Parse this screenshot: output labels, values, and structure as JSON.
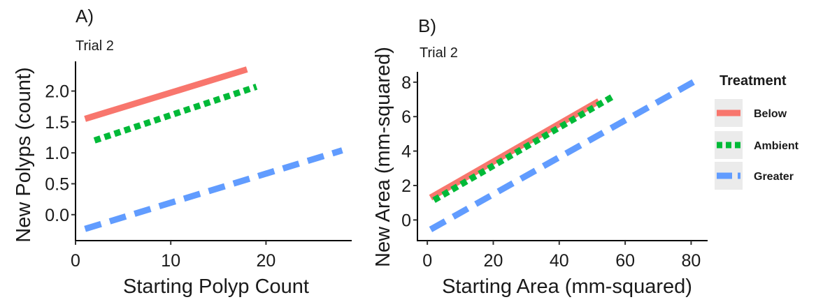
{
  "chart_data": [
    {
      "type": "line",
      "panel_label": "A)",
      "subtitle": "Trial 2",
      "xlabel": "Starting Polyp Count",
      "ylabel": "New Polyps (count)",
      "xlim": [
        0,
        29
      ],
      "ylim": [
        -0.42,
        2.48
      ],
      "xticks": [
        0,
        10,
        20
      ],
      "yticks": [
        0.0,
        0.5,
        1.0,
        1.5,
        2.0
      ],
      "xtick_labels": [
        "0",
        "10",
        "20"
      ],
      "ytick_labels": [
        "0.0",
        "0.5",
        "1.0",
        "1.5",
        "2.0"
      ],
      "grid": false,
      "series": [
        {
          "name": "Below",
          "x": [
            1,
            18
          ],
          "y": [
            1.55,
            2.35
          ]
        },
        {
          "name": "Ambient",
          "x": [
            2,
            19
          ],
          "y": [
            1.2,
            2.07
          ]
        },
        {
          "name": "Greater",
          "x": [
            1,
            28
          ],
          "y": [
            -0.23,
            1.04
          ]
        }
      ]
    },
    {
      "type": "line",
      "panel_label": "B)",
      "subtitle": "Trial 2",
      "xlabel": "Starting Area (mm-squared)",
      "ylabel": "New Area (mm-squared)",
      "xlim": [
        -3,
        85
      ],
      "ylim": [
        -1.2,
        8.6
      ],
      "xticks": [
        0,
        20,
        40,
        60,
        80
      ],
      "yticks": [
        0,
        2,
        4,
        6,
        8
      ],
      "xtick_labels": [
        "0",
        "20",
        "40",
        "60",
        "80"
      ],
      "ytick_labels": [
        "0",
        "2",
        "4",
        "6",
        "8"
      ],
      "grid": false,
      "series": [
        {
          "name": "Below",
          "x": [
            1,
            52
          ],
          "y": [
            1.3,
            6.9
          ]
        },
        {
          "name": "Ambient",
          "x": [
            2,
            57
          ],
          "y": [
            1.15,
            7.25
          ]
        },
        {
          "name": "Greater",
          "x": [
            1,
            82
          ],
          "y": [
            -0.55,
            8.15
          ]
        }
      ]
    }
  ],
  "legend": {
    "title": "Treatment",
    "placement": "right",
    "items": [
      {
        "label": "Below",
        "color": "#f8766d",
        "dash": "solid"
      },
      {
        "label": "Ambient",
        "color": "#00ba38",
        "dash": "dotted"
      },
      {
        "label": "Greater",
        "color": "#619cff",
        "dash": "dashed"
      }
    ]
  }
}
